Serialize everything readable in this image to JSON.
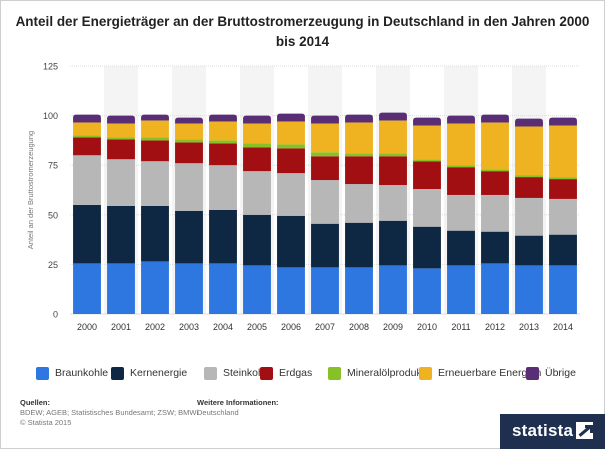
{
  "chart_data": {
    "type": "bar",
    "stacked": true,
    "title": "Anteil der Energieträger an der Bruttostromerzeugung in Deutschland in den Jahren 2000 bis 2014",
    "ylabel": "Anteil an der Bruttostromerzeugung",
    "xlabel": "",
    "ylim": [
      0,
      125
    ],
    "yticks": [
      0,
      25,
      50,
      75,
      100,
      125
    ],
    "grid": true,
    "legend_position": "bottom",
    "categories": [
      "2000",
      "2001",
      "2002",
      "2003",
      "2004",
      "2005",
      "2006",
      "2007",
      "2008",
      "2009",
      "2010",
      "2011",
      "2012",
      "2013",
      "2014"
    ],
    "series": [
      {
        "name": "Braunkohle",
        "color": "#2f77e0",
        "values": [
          25.5,
          25.5,
          26.5,
          25.5,
          25.5,
          24.5,
          23.5,
          23.5,
          23.5,
          24.5,
          23,
          24.5,
          25.5,
          24.5,
          24.5
        ]
      },
      {
        "name": "Kernenergie",
        "color": "#0e2742",
        "values": [
          29.5,
          29,
          28,
          26.5,
          27,
          25.5,
          26,
          22,
          22.5,
          22.5,
          21,
          17.5,
          16,
          15,
          15.5
        ]
      },
      {
        "name": "Steinkohle",
        "color": "#b7b7b7",
        "values": [
          25,
          23.5,
          22.5,
          24,
          22.5,
          22,
          21.5,
          22,
          19.5,
          18,
          19,
          18,
          18.5,
          19,
          18
        ]
      },
      {
        "name": "Erdgas",
        "color": "#a20f12",
        "values": [
          9,
          10,
          10.5,
          10.5,
          11,
          12,
          12.5,
          12,
          14,
          14.5,
          14,
          14,
          12,
          10.5,
          10
        ]
      },
      {
        "name": "Mineralölprodukte",
        "color": "#86c226",
        "values": [
          1,
          1,
          1.5,
          1.5,
          1.5,
          2,
          2,
          2,
          1.5,
          1.5,
          1,
          1,
          1,
          1,
          1
        ]
      },
      {
        "name": "Erneuerbare Energien",
        "color": "#efb321",
        "values": [
          6.5,
          7,
          8.5,
          8,
          9.5,
          10,
          11.5,
          14.5,
          15.5,
          16.5,
          17,
          21,
          23.5,
          24.5,
          26
        ]
      },
      {
        "name": "Übrige",
        "color": "#5a2e74",
        "values": [
          4,
          4,
          3,
          3,
          3.5,
          4,
          4,
          4,
          4,
          4,
          4,
          4,
          4,
          4,
          4
        ]
      }
    ]
  },
  "sources": {
    "heading": "Quellen:",
    "line1": "BDEW; AGEB; Statistisches Bundesamt; ZSW; BMWi",
    "line2": "© Statista 2015"
  },
  "further_info": {
    "heading": "Weitere Informationen:",
    "line1": "Deutschland"
  },
  "brand": {
    "name": "statista"
  }
}
